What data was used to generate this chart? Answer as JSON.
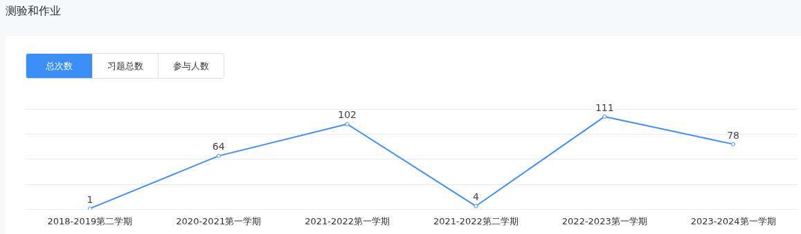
{
  "chart_data": {
    "type": "line",
    "title": "测验和作业",
    "annotations": [
      "总次数",
      "习题总数",
      "参与人数"
    ],
    "categories": [
      "2018-2019第二学期",
      "2020-2021第一学期",
      "2021-2022第一学期",
      "2021-2022第二学期",
      "2022-2023第一学期",
      "2023-2024第一学期"
    ],
    "series": [
      {
        "color": "#3f8ef7",
        "values": [
          1,
          64,
          102,
          4,
          111,
          78
        ]
      }
    ],
    "ylim": [
      0,
      120
    ],
    "yticks": [
      {
        "value": 0,
        "label": null
      },
      {
        "value": 30,
        "label": null
      },
      {
        "value": 60,
        "label": null
      },
      {
        "value": 90,
        "label": null
      },
      {
        "value": 120,
        "label": null
      }
    ],
    "tick_labels": "x",
    "grid": "y",
    "legend": false,
    "data_labels": true,
    "marker": "circle",
    "line_style": "solid"
  }
}
